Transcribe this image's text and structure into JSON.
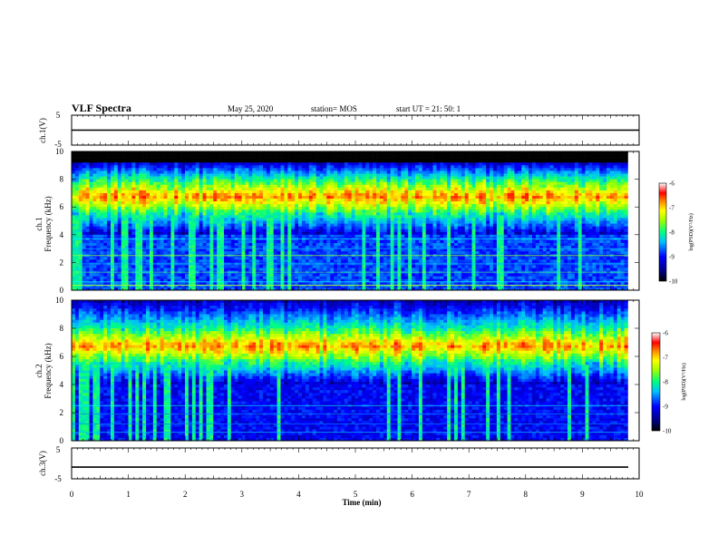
{
  "header": {
    "title": "VLF Spectra",
    "date": "May 25, 2020",
    "station": "station= MOS",
    "start": "start  UT =   21: 50: 1"
  },
  "colors": {
    "background": "#ffffff",
    "axis": "#000000",
    "colormap": [
      "#00007f",
      "#0000ff",
      "#00a0ff",
      "#00ffff",
      "#40ff80",
      "#a0ff00",
      "#ffff00",
      "#ff8000",
      "#ff0000",
      "#ffffff"
    ]
  },
  "chart_data": [
    {
      "type": "line",
      "panel": "ch1-voltage",
      "ylabel": "ch.1(V)",
      "ylim": [
        -5,
        5
      ],
      "yticks": [
        "5",
        "-5"
      ],
      "x": [
        0,
        10
      ],
      "y": [
        0,
        0
      ]
    },
    {
      "type": "heatmap",
      "panel": "ch1-spectrogram",
      "ylabel_top": "ch.1",
      "ylabel": "Frequency (kHz)",
      "xlim": [
        0,
        10
      ],
      "ylim": [
        0,
        10
      ],
      "yticks": [
        "0",
        "2",
        "4",
        "6",
        "8",
        "10"
      ],
      "colorbar": {
        "label": "log(PSD)(V²/Hz)",
        "range": [
          -10,
          -6
        ],
        "ticks": [
          "-6",
          "-7",
          "-8",
          "-9",
          "-10"
        ]
      },
      "structure": {
        "intense_band_khz": [
          5.5,
          8.0
        ],
        "peak_level": -6.2,
        "black_band_khz": [
          9.3,
          10
        ],
        "quiet_band_khz": [
          0,
          4
        ],
        "quiet_level": -9.5,
        "data_end_min": 9.8
      }
    },
    {
      "type": "heatmap",
      "panel": "ch2-spectrogram",
      "ylabel_top": "ch.2",
      "ylabel": "Frequency (kHz)",
      "xlim": [
        0,
        10
      ],
      "ylim": [
        0,
        10
      ],
      "yticks": [
        "0",
        "2",
        "4",
        "6",
        "8",
        "10"
      ],
      "colorbar": {
        "label": "log(PSD)(V²/Hz)",
        "range": [
          -10,
          -6
        ],
        "ticks": [
          "-6",
          "-7",
          "-8",
          "-9",
          "-10"
        ]
      },
      "structure": {
        "intense_band_khz": [
          5.5,
          8.0
        ],
        "peak_level": -6.2,
        "quiet_band_khz": [
          0,
          4
        ],
        "quiet_level": -9.8,
        "data_end_min": 9.8
      }
    },
    {
      "type": "line",
      "panel": "ch3-voltage",
      "ylabel": "ch.3(V)",
      "ylim": [
        -5,
        5
      ],
      "yticks": [
        "5",
        "-5"
      ],
      "x": [
        0,
        10
      ],
      "y": [
        -1.2,
        -1.2
      ]
    }
  ],
  "xaxis": {
    "label": "Time (min)",
    "xlim": [
      0,
      10
    ],
    "ticks": [
      "0",
      "1",
      "2",
      "3",
      "4",
      "5",
      "6",
      "7",
      "8",
      "9",
      "10"
    ]
  }
}
